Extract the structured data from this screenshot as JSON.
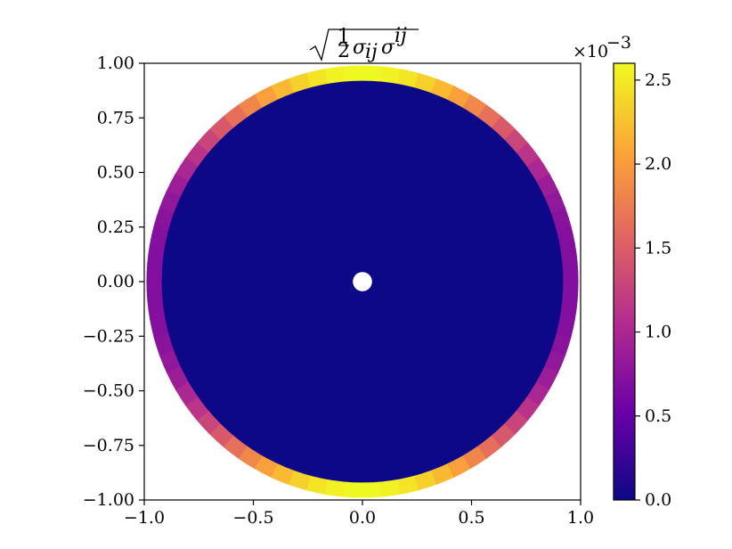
{
  "chart_data": {
    "type": "heatmap",
    "title": "√(½ σ_ij σ^ij)",
    "title_parts": {
      "numerator": "1",
      "denominator": "2",
      "body": "σ",
      "sub": "ij",
      "body2": "σ",
      "sup": "ij"
    },
    "xlabel": "",
    "ylabel": "",
    "xlim": [
      -1.0,
      1.0
    ],
    "ylim": [
      -1.0,
      1.0
    ],
    "x_ticks": [
      -1.0,
      -0.5,
      0.0,
      0.5,
      1.0
    ],
    "x_tick_labels": [
      "−1.0",
      "−0.5",
      "0.0",
      "0.5",
      "1.0"
    ],
    "y_ticks": [
      1.0,
      0.75,
      0.5,
      0.25,
      0.0,
      -0.25,
      -0.5,
      -0.75,
      -1.0
    ],
    "y_tick_labels": [
      "1.00",
      "0.75",
      "0.50",
      "0.25",
      "0.00",
      "−0.25",
      "−0.50",
      "−0.75",
      "−1.00"
    ],
    "grid": false,
    "colormap": "plasma",
    "colorbar": {
      "range": [
        0.0,
        0.0026
      ],
      "ticks": [
        0.0,
        0.5,
        1.0,
        1.5,
        2.0,
        2.5
      ],
      "tick_labels": [
        "0.0",
        "0.5",
        "1.0",
        "1.5",
        "2.0",
        "2.5"
      ],
      "multiplier_base": "×10",
      "multiplier_exponent": "−3",
      "colors": [
        "#0d0887",
        "#6a00a8",
        "#b12a90",
        "#e16462",
        "#fca636",
        "#f0f921"
      ]
    },
    "field": {
      "outer_radius": 0.99,
      "inner_radius": 0.92,
      "hole_radius": 0.04,
      "interior_value": 0.0,
      "ring_min_value": 0.0007,
      "ring_max_value": 0.0026
    }
  }
}
